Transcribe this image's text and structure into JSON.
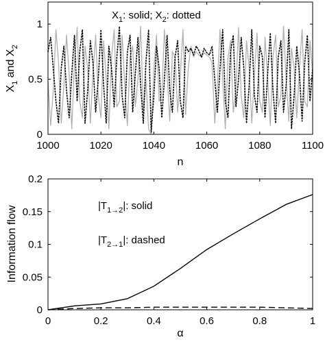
{
  "chart_data": [
    {
      "type": "line",
      "xlabel": "n",
      "ylabel": "X1 and X2",
      "legend_text": "X1: solid; X2: dotted",
      "xlim": [
        1000,
        1100
      ],
      "ylim": [
        0,
        1.2
      ],
      "xticks": [
        "1000",
        "1020",
        "1040",
        "1060",
        "1080",
        "1100"
      ],
      "yticks": [
        "0",
        "0.5",
        "1"
      ],
      "legend_placement": "top-center",
      "grid": false,
      "colors": {
        "X1": "#b0b0b0",
        "X2": "#000000"
      },
      "series": [
        {
          "name": "X1",
          "style": "solid",
          "values": [
            0.48,
            0.08,
            0.4,
            0.95,
            0.65,
            0.1,
            0.45,
            0.9,
            0.55,
            0.05,
            0.65,
            0.97,
            0.3,
            0.15,
            0.8,
            0.6,
            0.1,
            0.55,
            0.9,
            0.35,
            0.15,
            0.85,
            0.5,
            0.05,
            0.7,
            0.95,
            0.25,
            0.3,
            0.9,
            0.45,
            0.08,
            0.7,
            0.8,
            0.25,
            0.5,
            0.98,
            0.2,
            0.5,
            0.05,
            0.0,
            0.6,
            0.9,
            0.3,
            0.35,
            0.95,
            0.55,
            0.12,
            0.75,
            0.7,
            0.2,
            0.55,
            0.95,
            0.18,
            0.6,
            0.8,
            0.7,
            0.75,
            0.72,
            0.7,
            0.74,
            0.72,
            0.7,
            0.65,
            0.1,
            0.45,
            0.95,
            0.5,
            0.05,
            0.7,
            0.85,
            0.2,
            0.4,
            0.97,
            0.35,
            0.15,
            0.85,
            0.6,
            0.1,
            0.55,
            0.92,
            0.3,
            0.2,
            0.88,
            0.5,
            0.08,
            0.7,
            0.9,
            0.25,
            0.35,
            0.98,
            0.5,
            0.12,
            0.78,
            0.6,
            0.15,
            0.6,
            0.95,
            0.3,
            0.25,
            0.85,
            0.55
          ]
        },
        {
          "name": "X2",
          "style": "dotted",
          "values": [
            0.75,
            0.88,
            0.6,
            0.3,
            0.1,
            0.6,
            0.8,
            0.4,
            0.15,
            0.55,
            0.9,
            0.3,
            0.75,
            0.95,
            0.1,
            0.4,
            0.85,
            0.65,
            0.2,
            0.5,
            0.95,
            0.45,
            0.1,
            0.8,
            0.6,
            0.25,
            0.7,
            0.98,
            0.35,
            0.15,
            0.75,
            0.9,
            0.2,
            0.55,
            0.88,
            0.45,
            0.1,
            0.65,
            0.95,
            0.02,
            0.35,
            0.8,
            0.6,
            0.15,
            0.5,
            0.9,
            0.4,
            0.2,
            0.7,
            0.85,
            0.3,
            0.15,
            0.8,
            0.75,
            0.78,
            0.72,
            0.8,
            0.76,
            0.7,
            0.78,
            0.74,
            0.72,
            0.8,
            0.5,
            0.2,
            0.6,
            0.95,
            0.3,
            0.15,
            0.75,
            0.9,
            0.25,
            0.5,
            0.88,
            0.6,
            0.1,
            0.45,
            0.95,
            0.35,
            0.2,
            0.8,
            0.7,
            0.15,
            0.55,
            0.92,
            0.4,
            0.1,
            0.7,
            0.85,
            0.2,
            0.45,
            0.95,
            0.05,
            0.35,
            0.8,
            0.55,
            0.12,
            0.65,
            0.9,
            0.3,
            0.6
          ]
        }
      ]
    },
    {
      "type": "line",
      "xlabel": "α",
      "ylabel": "Information flow",
      "xlim": [
        0,
        1
      ],
      "ylim": [
        0,
        0.2
      ],
      "xticks": [
        "0",
        "0.2",
        "0.4",
        "0.6",
        "0.8",
        "1"
      ],
      "yticks": [
        "0",
        "0.05",
        "0.1",
        "0.15",
        "0.2"
      ],
      "legend_placement": "top-left",
      "grid": false,
      "legend": [
        {
          "pre": "|T",
          "sub": "1→2",
          "post": "|:  solid"
        },
        {
          "pre": "|T",
          "sub": "2→1",
          "post": "|:  dashed"
        }
      ],
      "series": [
        {
          "name": "|T1→2|",
          "style": "solid",
          "x": [
            0,
            0.1,
            0.2,
            0.3,
            0.4,
            0.5,
            0.6,
            0.7,
            0.8,
            0.9,
            1.0
          ],
          "y": [
            0.0,
            0.006,
            0.009,
            0.017,
            0.036,
            0.063,
            0.092,
            0.116,
            0.139,
            0.161,
            0.176
          ]
        },
        {
          "name": "|T2→1|",
          "style": "dashed",
          "x": [
            0,
            0.1,
            0.2,
            0.3,
            0.4,
            0.5,
            0.6,
            0.7,
            0.8,
            0.9,
            1.0
          ],
          "y": [
            0.0,
            0.002,
            0.003,
            0.003,
            0.004,
            0.004,
            0.004,
            0.004,
            0.004,
            0.003,
            0.002
          ]
        }
      ]
    }
  ]
}
